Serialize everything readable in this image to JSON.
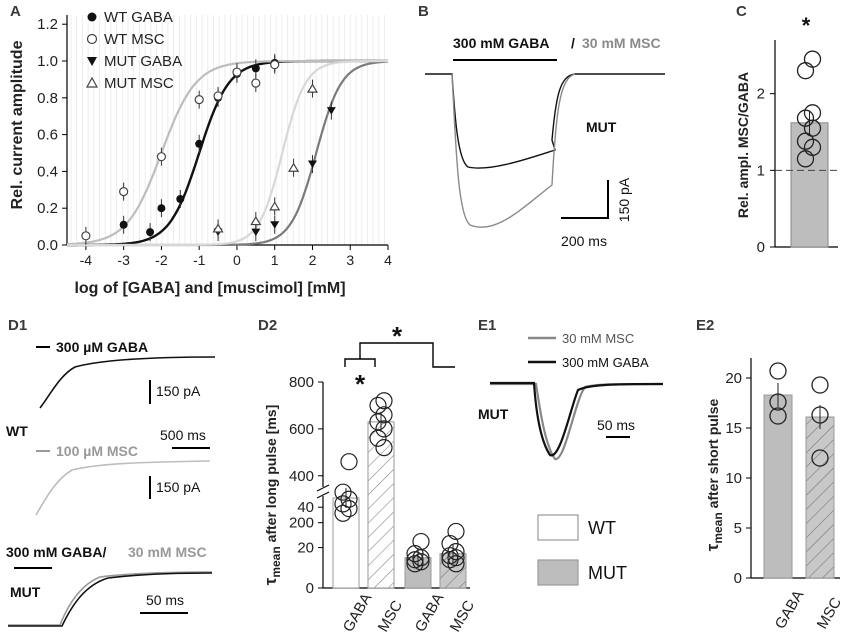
{
  "colors": {
    "wt": "#111111",
    "wt_msc": "#9c9c9c",
    "mut_gaba": "#111111",
    "mut_msc": "#7a7a7a",
    "wt_curve_msc": "#bdbdbd",
    "mut_curve_gaba": "#7a7a7a",
    "light_fill": "#ffffff",
    "gray_fill": "#bdbdbd"
  },
  "panels": {
    "A": {
      "label": "A",
      "ylabel": "Rel. current amplitude",
      "xlabel": "log of [GABA] and [muscimol] [mM]"
    },
    "B": {
      "label": "B",
      "title_a": "300 mM GABA",
      "sep": "/",
      "title_b": "30 mM MSC",
      "tag": "MUT",
      "scale_y": "150 pA",
      "scale_x": "200 ms"
    },
    "C": {
      "label": "C",
      "ylabel": "Rel. ampl. MSC/GABA",
      "star": "*"
    },
    "D1": {
      "label": "D1",
      "t1": "300 µM GABA",
      "s1": "150 pA",
      "wt": "WT",
      "x1": "500 ms",
      "t2": "100 µM MSC",
      "s2": "150 pA",
      "t3a": "300 mM GABA/",
      "t3b": "30 mM MSC",
      "mut": "MUT",
      "x3": "50 ms"
    },
    "D2": {
      "label": "D2",
      "ylabel_tau": "τ",
      "ylabel_sub": "mean",
      "ylabel_rest": " after long pulse [ms]",
      "star_top": "*",
      "star_msc": "*"
    },
    "E1": {
      "label": "E1",
      "leg_msc": "30 mM MSC",
      "leg_gaba": "300 mM GABA",
      "mut": "MUT",
      "scale_x": "50 ms"
    },
    "E2": {
      "label": "E2",
      "ylabel_tau": "τ",
      "ylabel_sub": "mean",
      "ylabel_rest": " after short pulse"
    }
  },
  "legend_D": {
    "wt": "WT",
    "mut": "MUT"
  },
  "chart_data": [
    {
      "id": "A",
      "type": "scatter",
      "xlim": [
        -4.5,
        4
      ],
      "ylim": [
        0,
        1.25
      ],
      "xticks": [
        "-4",
        "-3",
        "-2",
        "-1",
        "0",
        "1",
        "2",
        "3",
        "4"
      ],
      "yticks": [
        "0.0",
        "0.2",
        "0.4",
        "0.6",
        "0.8",
        "1.0",
        "1.2"
      ],
      "series": [
        {
          "name": "WT GABA",
          "x": [
            -3,
            -2.3,
            -2,
            -1.5,
            -1,
            -0.5,
            0,
            0.5,
            1
          ],
          "y": [
            0.11,
            0.07,
            0.2,
            0.25,
            0.55,
            0.8,
            0.93,
            0.96,
            0.99
          ],
          "ec50": -1.0,
          "hill": 1.1
        },
        {
          "name": "WT MSC",
          "x": [
            -4,
            -3,
            -2,
            -1,
            -0.5,
            0,
            0.5,
            1
          ],
          "y": [
            0.05,
            0.29,
            0.48,
            0.79,
            0.81,
            0.94,
            0.88,
            0.98
          ],
          "ec50": -2.0,
          "hill": 0.95
        },
        {
          "name": "MUT GABA",
          "x": [
            -0.5,
            0.5,
            1,
            2,
            2.5
          ],
          "y": [
            0.07,
            0.07,
            0.11,
            0.44,
            0.73
          ],
          "ec50": 2.1,
          "hill": 1.3
        },
        {
          "name": "MUT MSC",
          "x": [
            -0.5,
            0.5,
            1,
            1.5,
            2
          ],
          "y": [
            0.09,
            0.13,
            0.21,
            0.42,
            0.85
          ],
          "ec50": 1.2,
          "hill": 1.4
        }
      ]
    },
    {
      "id": "C",
      "type": "bar",
      "categories": [
        ""
      ],
      "values": [
        1.62
      ],
      "ylim": [
        0,
        2.7
      ],
      "yticks": [
        "0",
        "1",
        "2"
      ],
      "points": [
        2.45,
        2.3,
        1.75,
        1.68,
        1.55,
        1.38,
        1.3,
        1.15
      ]
    },
    {
      "id": "D2",
      "type": "bar",
      "categories": [
        "GABA",
        "MSC",
        "GABA",
        "MSC"
      ],
      "groups": [
        "WT",
        "WT",
        "MUT",
        "MUT"
      ],
      "values": [
        305,
        630,
        15,
        17
      ],
      "yticks_top": [
        "200",
        "400",
        "600",
        "800"
      ],
      "yticks_bottom": [
        "0",
        "20",
        "40"
      ],
      "points": [
        [
          460,
          330,
          300,
          280,
          260,
          240
        ],
        [
          720,
          700,
          660,
          630,
          600,
          560,
          520
        ],
        [
          23,
          17,
          15,
          14,
          13,
          12
        ],
        [
          28,
          22,
          18,
          16,
          15,
          14,
          12
        ]
      ]
    },
    {
      "id": "E2",
      "type": "bar",
      "categories": [
        "GABA",
        "MSC"
      ],
      "values": [
        18.3,
        16.1
      ],
      "ylim": [
        0,
        22
      ],
      "yticks": [
        "0",
        "5",
        "10",
        "15",
        "20"
      ],
      "points": [
        [
          20.7,
          17.6,
          16.2
        ],
        [
          19.3,
          16.3,
          12.0
        ]
      ]
    }
  ]
}
